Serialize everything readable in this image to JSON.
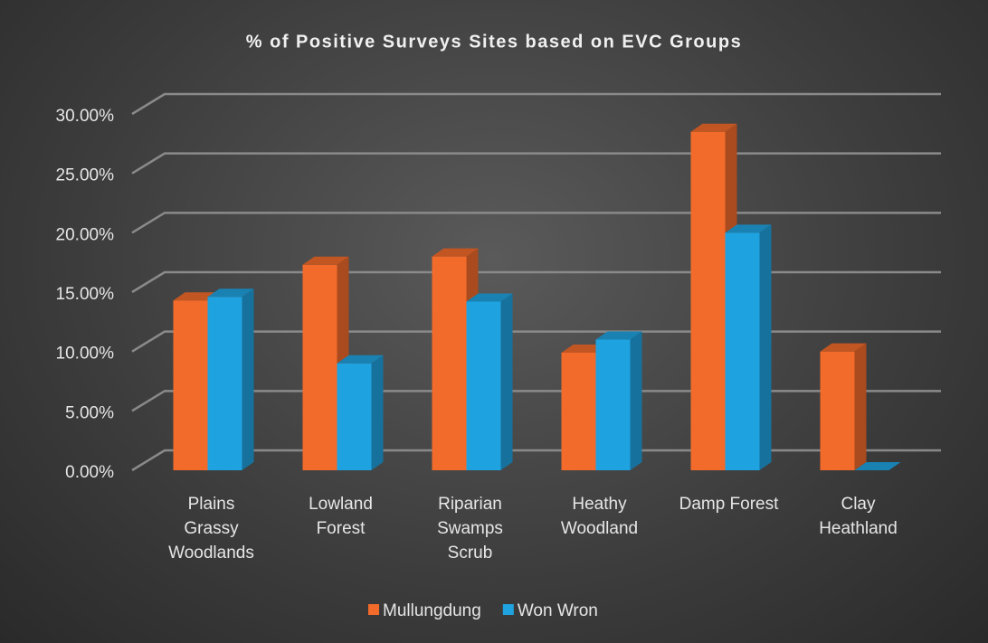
{
  "chart_data": {
    "type": "bar3d",
    "title": "% of Positive Surveys Sites based on EVC Groups",
    "categories": [
      "Plains Grassy Woodlands",
      "Lowland Forest",
      "Riparian Swamps Scrub",
      "Heathy Woodland",
      "Damp Forest",
      "Clay Heathland"
    ],
    "series": [
      {
        "name": "Mullungdung",
        "color": "#f26b2b",
        "values": [
          14.3,
          17.3,
          18.0,
          9.9,
          28.5,
          10.0
        ]
      },
      {
        "name": "Won Wron",
        "color": "#1fa3e0",
        "values": [
          14.6,
          9.0,
          14.2,
          11.0,
          20.0,
          0
        ]
      }
    ],
    "ylim": [
      0,
      30
    ],
    "yticks": [
      {
        "value": 0,
        "label": "0.00%"
      },
      {
        "value": 5,
        "label": "5.00%"
      },
      {
        "value": 10,
        "label": "10.00%"
      },
      {
        "value": 15,
        "label": "15.00%"
      },
      {
        "value": 20,
        "label": "20.00%"
      },
      {
        "value": 25,
        "label": "25.00%"
      },
      {
        "value": 30,
        "label": "30.00%"
      }
    ],
    "grid": true,
    "legend": "bottom"
  }
}
